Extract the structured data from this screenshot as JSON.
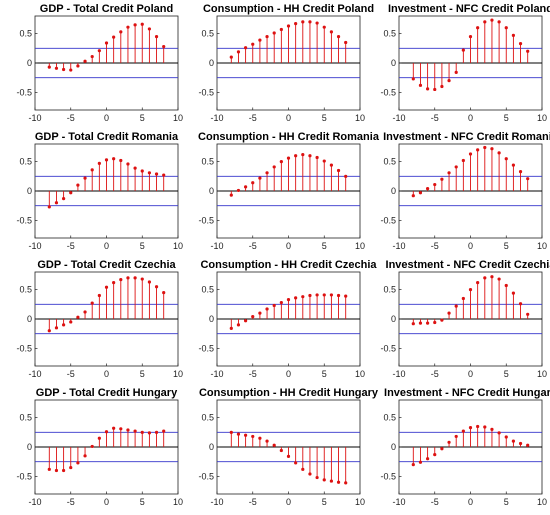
{
  "layout": {
    "rows": 4,
    "cols": 3
  },
  "chart_data": [
    {
      "type": "stem",
      "title": "GDP - Total Credit Poland",
      "xlim": [
        -10,
        10
      ],
      "ylim": [
        -0.8,
        0.8
      ],
      "xticks": [
        "-10",
        "-5",
        "0",
        "5",
        "10"
      ],
      "yticks": [
        "-0.5",
        "0",
        "0.5"
      ],
      "bands": [
        0.25,
        -0.25
      ],
      "x": [
        -8,
        -7,
        -6,
        -5,
        -4,
        -3,
        -2,
        -1,
        0,
        1,
        2,
        3,
        4,
        5,
        6,
        7,
        8
      ],
      "values": [
        -0.07,
        -0.09,
        -0.11,
        -0.12,
        -0.05,
        0.03,
        0.11,
        0.21,
        0.34,
        0.44,
        0.53,
        0.61,
        0.65,
        0.66,
        0.58,
        0.45,
        0.28
      ]
    },
    {
      "type": "stem",
      "title": "Consumption - HH Credit Poland",
      "xlim": [
        -10,
        10
      ],
      "ylim": [
        -0.8,
        0.8
      ],
      "xticks": [
        "-10",
        "-5",
        "0",
        "5",
        "10"
      ],
      "yticks": [
        "-0.5",
        "0",
        "0.5"
      ],
      "bands": [
        0.25,
        -0.25
      ],
      "x": [
        -8,
        -7,
        -6,
        -5,
        -4,
        -3,
        -2,
        -1,
        0,
        1,
        2,
        3,
        4,
        5,
        6,
        7,
        8
      ],
      "values": [
        0.1,
        0.19,
        0.26,
        0.32,
        0.39,
        0.45,
        0.51,
        0.57,
        0.63,
        0.67,
        0.7,
        0.7,
        0.68,
        0.61,
        0.53,
        0.45,
        0.35
      ]
    },
    {
      "type": "stem",
      "title": "Investment - NFC Credit Poland",
      "xlim": [
        -10,
        10
      ],
      "ylim": [
        -0.8,
        0.8
      ],
      "xticks": [
        "-10",
        "-5",
        "0",
        "5",
        "10"
      ],
      "yticks": [
        "-0.5",
        "0",
        "0.5"
      ],
      "bands": [
        0.25,
        -0.25
      ],
      "x": [
        -8,
        -7,
        -6,
        -5,
        -4,
        -3,
        -2,
        -1,
        0,
        1,
        2,
        3,
        4,
        5,
        6,
        7,
        8
      ],
      "values": [
        -0.27,
        -0.38,
        -0.44,
        -0.45,
        -0.4,
        -0.3,
        -0.16,
        0.22,
        0.45,
        0.6,
        0.7,
        0.73,
        0.7,
        0.6,
        0.47,
        0.33,
        0.2
      ]
    },
    {
      "type": "stem",
      "title": "GDP - Total Credit Romania",
      "xlim": [
        -10,
        10
      ],
      "ylim": [
        -0.8,
        0.8
      ],
      "xticks": [
        "-10",
        "-5",
        "0",
        "5",
        "10"
      ],
      "yticks": [
        "-0.5",
        "0",
        "0.5"
      ],
      "bands": [
        0.25,
        -0.25
      ],
      "x": [
        -8,
        -7,
        -6,
        -5,
        -4,
        -3,
        -2,
        -1,
        0,
        1,
        2,
        3,
        4,
        5,
        6,
        7,
        8
      ],
      "values": [
        -0.27,
        -0.2,
        -0.13,
        -0.03,
        0.1,
        0.22,
        0.36,
        0.47,
        0.53,
        0.55,
        0.52,
        0.46,
        0.39,
        0.34,
        0.31,
        0.29,
        0.27
      ]
    },
    {
      "type": "stem",
      "title": "Consumption - HH Credit Romania",
      "xlim": [
        -10,
        10
      ],
      "ylim": [
        -0.8,
        0.8
      ],
      "xticks": [
        "-10",
        "-5",
        "0",
        "5",
        "10"
      ],
      "yticks": [
        "-0.5",
        "0",
        "0.5"
      ],
      "bands": [
        0.25,
        -0.25
      ],
      "x": [
        -8,
        -7,
        -6,
        -5,
        -4,
        -3,
        -2,
        -1,
        0,
        1,
        2,
        3,
        4,
        5,
        6,
        7,
        8
      ],
      "values": [
        -0.07,
        0.01,
        0.07,
        0.14,
        0.22,
        0.31,
        0.41,
        0.5,
        0.56,
        0.6,
        0.62,
        0.6,
        0.57,
        0.51,
        0.44,
        0.35,
        0.25
      ]
    },
    {
      "type": "stem",
      "title": "Investment - NFC Credit Romania",
      "xlim": [
        -10,
        10
      ],
      "ylim": [
        -0.8,
        0.8
      ],
      "xticks": [
        "-10",
        "-5",
        "0",
        "5",
        "10"
      ],
      "yticks": [
        "-0.5",
        "0",
        "0.5"
      ],
      "bands": [
        0.25,
        -0.25
      ],
      "x": [
        -8,
        -7,
        -6,
        -5,
        -4,
        -3,
        -2,
        -1,
        0,
        1,
        2,
        3,
        4,
        5,
        6,
        7,
        8
      ],
      "values": [
        -0.08,
        -0.03,
        0.04,
        0.11,
        0.2,
        0.31,
        0.41,
        0.52,
        0.63,
        0.7,
        0.74,
        0.72,
        0.65,
        0.55,
        0.44,
        0.33,
        0.21
      ]
    },
    {
      "type": "stem",
      "title": "GDP - Total Credit Czechia",
      "xlim": [
        -10,
        10
      ],
      "ylim": [
        -0.8,
        0.8
      ],
      "xticks": [
        "-10",
        "-5",
        "0",
        "5",
        "10"
      ],
      "yticks": [
        "-0.5",
        "0",
        "0.5"
      ],
      "bands": [
        0.25,
        -0.25
      ],
      "x": [
        -8,
        -7,
        -6,
        -5,
        -4,
        -3,
        -2,
        -1,
        0,
        1,
        2,
        3,
        4,
        5,
        6,
        7,
        8
      ],
      "values": [
        -0.2,
        -0.15,
        -0.1,
        -0.05,
        0.03,
        0.12,
        0.27,
        0.4,
        0.54,
        0.62,
        0.67,
        0.7,
        0.7,
        0.68,
        0.63,
        0.55,
        0.45
      ]
    },
    {
      "type": "stem",
      "title": "Consumption - HH Credit Czechia",
      "xlim": [
        -10,
        10
      ],
      "ylim": [
        -0.8,
        0.8
      ],
      "xticks": [
        "-10",
        "-5",
        "0",
        "5",
        "10"
      ],
      "yticks": [
        "-0.5",
        "0",
        "0.5"
      ],
      "bands": [
        0.25,
        -0.25
      ],
      "x": [
        -8,
        -7,
        -6,
        -5,
        -4,
        -3,
        -2,
        -1,
        0,
        1,
        2,
        3,
        4,
        5,
        6,
        7,
        8
      ],
      "values": [
        -0.16,
        -0.1,
        -0.03,
        0.04,
        0.1,
        0.17,
        0.23,
        0.28,
        0.33,
        0.36,
        0.38,
        0.4,
        0.41,
        0.41,
        0.41,
        0.4,
        0.39
      ]
    },
    {
      "type": "stem",
      "title": "Investment - NFC Credit Czechia",
      "xlim": [
        -10,
        10
      ],
      "ylim": [
        -0.8,
        0.8
      ],
      "xticks": [
        "-10",
        "-5",
        "0",
        "5",
        "10"
      ],
      "yticks": [
        "-0.5",
        "0",
        "0.5"
      ],
      "bands": [
        0.25,
        -0.25
      ],
      "x": [
        -8,
        -7,
        -6,
        -5,
        -4,
        -3,
        -2,
        -1,
        0,
        1,
        2,
        3,
        4,
        5,
        6,
        7,
        8
      ],
      "values": [
        -0.08,
        -0.07,
        -0.07,
        -0.06,
        -0.02,
        0.1,
        0.22,
        0.35,
        0.5,
        0.62,
        0.7,
        0.72,
        0.68,
        0.57,
        0.44,
        0.26,
        0.08
      ]
    },
    {
      "type": "stem",
      "title": "GDP - Total Credit Hungary",
      "xlim": [
        -10,
        10
      ],
      "ylim": [
        -0.8,
        0.8
      ],
      "xticks": [
        "-10",
        "-5",
        "0",
        "5",
        "10"
      ],
      "yticks": [
        "-0.5",
        "0",
        "0.5"
      ],
      "bands": [
        0.25,
        -0.25
      ],
      "x": [
        -8,
        -7,
        -6,
        -5,
        -4,
        -3,
        -2,
        -1,
        0,
        1,
        2,
        3,
        4,
        5,
        6,
        7,
        8
      ],
      "values": [
        -0.38,
        -0.4,
        -0.4,
        -0.35,
        -0.27,
        -0.15,
        0.01,
        0.15,
        0.26,
        0.32,
        0.31,
        0.29,
        0.27,
        0.25,
        0.24,
        0.25,
        0.27
      ]
    },
    {
      "type": "stem",
      "title": "Consumption - HH Credit Hungary",
      "xlim": [
        -10,
        10
      ],
      "ylim": [
        -0.8,
        0.8
      ],
      "xticks": [
        "-10",
        "-5",
        "0",
        "5",
        "10"
      ],
      "yticks": [
        "-0.5",
        "0",
        "0.5"
      ],
      "bands": [
        0.25,
        -0.25
      ],
      "x": [
        -8,
        -7,
        -6,
        -5,
        -4,
        -3,
        -2,
        -1,
        0,
        1,
        2,
        3,
        4,
        5,
        6,
        7,
        8
      ],
      "values": [
        0.25,
        0.22,
        0.2,
        0.18,
        0.15,
        0.1,
        0.03,
        -0.06,
        -0.16,
        -0.27,
        -0.38,
        -0.46,
        -0.52,
        -0.56,
        -0.58,
        -0.6,
        -0.61
      ]
    },
    {
      "type": "stem",
      "title": "Investment - NFC Credit Hungary",
      "xlim": [
        -10,
        10
      ],
      "ylim": [
        -0.8,
        0.8
      ],
      "xticks": [
        "-10",
        "-5",
        "0",
        "5",
        "10"
      ],
      "yticks": [
        "-0.5",
        "0",
        "0.5"
      ],
      "bands": [
        0.25,
        -0.25
      ],
      "x": [
        -8,
        -7,
        -6,
        -5,
        -4,
        -3,
        -2,
        -1,
        0,
        1,
        2,
        3,
        4,
        5,
        6,
        7,
        8
      ],
      "values": [
        -0.3,
        -0.26,
        -0.2,
        -0.13,
        -0.03,
        0.08,
        0.18,
        0.27,
        0.33,
        0.35,
        0.34,
        0.3,
        0.24,
        0.17,
        0.1,
        0.06,
        0.03
      ]
    }
  ],
  "colors": {
    "stem": "#dd1111",
    "band": "#3333cc",
    "zero": "#000000",
    "axis": "#222222"
  }
}
